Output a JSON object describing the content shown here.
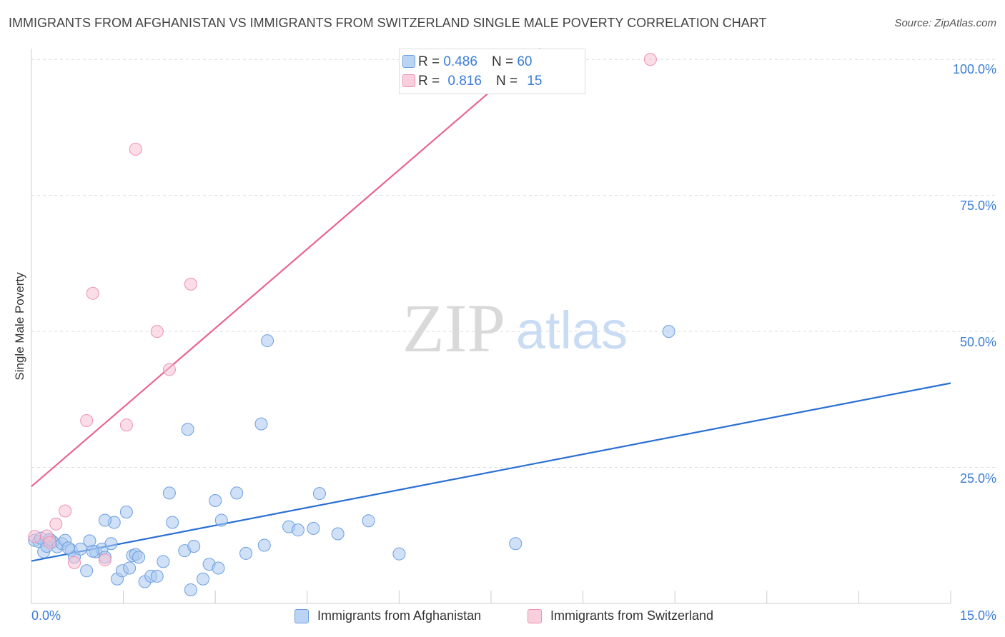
{
  "header": {
    "title": "IMMIGRANTS FROM AFGHANISTAN VS IMMIGRANTS FROM SWITZERLAND SINGLE MALE POVERTY CORRELATION CHART",
    "source": "Source: ZipAtlas.com"
  },
  "watermark": {
    "zip": "ZIP",
    "atlas": "atlas"
  },
  "colors": {
    "afghanistan_fill": "#a9c8f0",
    "afghanistan_stroke": "#6c9fe0",
    "afghanistan_line": "#2a6fd4",
    "switzerland_fill": "#f7c1d3",
    "switzerland_stroke": "#ec92b0",
    "switzerland_line": "#e8668e",
    "tick_text": "#3b7dd8",
    "grid": "#dddddd"
  },
  "legend_stats": {
    "afghanistan": {
      "r_label": "R =",
      "r_value": "0.486",
      "n_label": "N =",
      "n_value": "60"
    },
    "switzerland": {
      "r_label": "R =",
      "r_value": "0.816",
      "n_label": "N =",
      "n_value": "15"
    }
  },
  "chart_data": {
    "type": "scatter",
    "title": "IMMIGRANTS FROM AFGHANISTAN VS IMMIGRANTS FROM SWITZERLAND SINGLE MALE POVERTY CORRELATION CHART",
    "xlabel": "",
    "ylabel": "Single Male Poverty",
    "xlim": [
      0,
      15
    ],
    "ylim": [
      0,
      102
    ],
    "x_tick_labels": [
      "0.0%",
      "15.0%"
    ],
    "y_ticks": [
      25,
      50,
      75,
      100
    ],
    "y_tick_labels": [
      "25.0%",
      "50.0%",
      "75.0%",
      "100.0%"
    ],
    "grid": true,
    "legend_position": "bottom-center",
    "series": [
      {
        "name": "Immigrants from Afghanistan",
        "points": [
          [
            0.05,
            11.6
          ],
          [
            0.12,
            11.4
          ],
          [
            0.2,
            9.5
          ],
          [
            0.28,
            11.6
          ],
          [
            0.35,
            11.3
          ],
          [
            0.42,
            10.4
          ],
          [
            0.5,
            11.0
          ],
          [
            0.55,
            11.6
          ],
          [
            0.65,
            9.8
          ],
          [
            0.7,
            8.5
          ],
          [
            0.8,
            10.0
          ],
          [
            0.9,
            6.0
          ],
          [
            0.95,
            11.5
          ],
          [
            1.05,
            9.5
          ],
          [
            1.15,
            10.0
          ],
          [
            1.2,
            8.5
          ],
          [
            1.3,
            11.0
          ],
          [
            1.35,
            14.9
          ],
          [
            1.4,
            4.5
          ],
          [
            1.48,
            6.0
          ],
          [
            1.55,
            16.8
          ],
          [
            1.6,
            6.5
          ],
          [
            1.65,
            8.8
          ],
          [
            1.7,
            9.0
          ],
          [
            1.75,
            8.5
          ],
          [
            1.85,
            4.0
          ],
          [
            1.95,
            5.0
          ],
          [
            2.05,
            5.0
          ],
          [
            2.15,
            7.7
          ],
          [
            2.25,
            20.3
          ],
          [
            2.3,
            14.9
          ],
          [
            2.5,
            9.7
          ],
          [
            2.55,
            32.0
          ],
          [
            2.6,
            2.5
          ],
          [
            2.65,
            10.5
          ],
          [
            2.8,
            4.5
          ],
          [
            2.9,
            7.2
          ],
          [
            3.0,
            18.9
          ],
          [
            3.05,
            6.5
          ],
          [
            3.1,
            15.3
          ],
          [
            3.5,
            9.2
          ],
          [
            3.75,
            33.0
          ],
          [
            3.8,
            10.7
          ],
          [
            3.85,
            48.3
          ],
          [
            4.2,
            14.1
          ],
          [
            4.35,
            13.5
          ],
          [
            4.6,
            13.8
          ],
          [
            4.7,
            20.2
          ],
          [
            5.0,
            12.8
          ],
          [
            5.5,
            15.2
          ],
          [
            6.0,
            9.1
          ],
          [
            7.9,
            11.0
          ],
          [
            10.4,
            50.0
          ],
          [
            1.2,
            15.3
          ],
          [
            0.25,
            10.5
          ],
          [
            0.6,
            10.2
          ],
          [
            0.15,
            12.0
          ],
          [
            0.3,
            11.8
          ],
          [
            3.35,
            20.3
          ],
          [
            1.0,
            9.6
          ]
        ],
        "trend": {
          "x": [
            0,
            15
          ],
          "y": [
            7.8,
            40.5
          ]
        }
      },
      {
        "name": "Immigrants from Switzerland",
        "points": [
          [
            0.05,
            12.3
          ],
          [
            0.25,
            12.4
          ],
          [
            0.3,
            11.2
          ],
          [
            0.4,
            14.6
          ],
          [
            0.55,
            17.0
          ],
          [
            0.7,
            7.5
          ],
          [
            0.9,
            33.6
          ],
          [
            1.0,
            57.0
          ],
          [
            1.2,
            8.0
          ],
          [
            1.55,
            32.8
          ],
          [
            1.7,
            83.5
          ],
          [
            2.05,
            50.0
          ],
          [
            2.25,
            43.0
          ],
          [
            2.6,
            58.7
          ],
          [
            10.1,
            100.0
          ]
        ],
        "trend": {
          "x": [
            0,
            8.3
          ],
          "y": [
            21.5,
            102.0
          ]
        }
      }
    ]
  },
  "legend_bottom": {
    "afghanistan_label": "Immigrants from Afghanistan",
    "switzerland_label": "Immigrants from Switzerland"
  }
}
